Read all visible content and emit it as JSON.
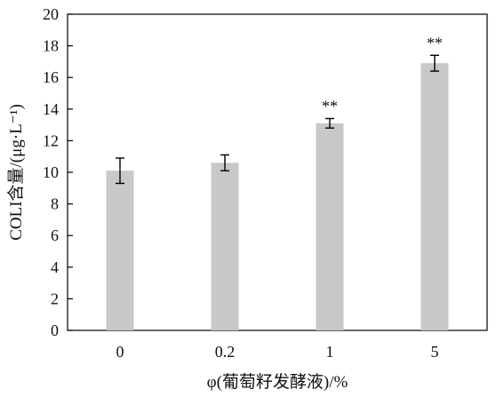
{
  "chart_data": {
    "type": "bar",
    "categories": [
      "0",
      "0.2",
      "1",
      "5"
    ],
    "values": [
      10.1,
      10.6,
      13.1,
      16.9
    ],
    "errors": [
      0.8,
      0.5,
      0.3,
      0.5
    ],
    "annotations": [
      "",
      "",
      "**",
      "**"
    ],
    "xlabel": "φ(葡萄籽发酵液)/%",
    "ylabel": "COLI含量/(μg·L⁻¹)",
    "ylim": [
      0,
      20
    ],
    "yticks": [
      "0",
      "2",
      "4",
      "6",
      "8",
      "10",
      "12",
      "14",
      "16",
      "18",
      "20"
    ],
    "grid": false,
    "colors": {
      "bar": "#c8c8c8",
      "axis": "#000000",
      "error": "#000000"
    }
  }
}
